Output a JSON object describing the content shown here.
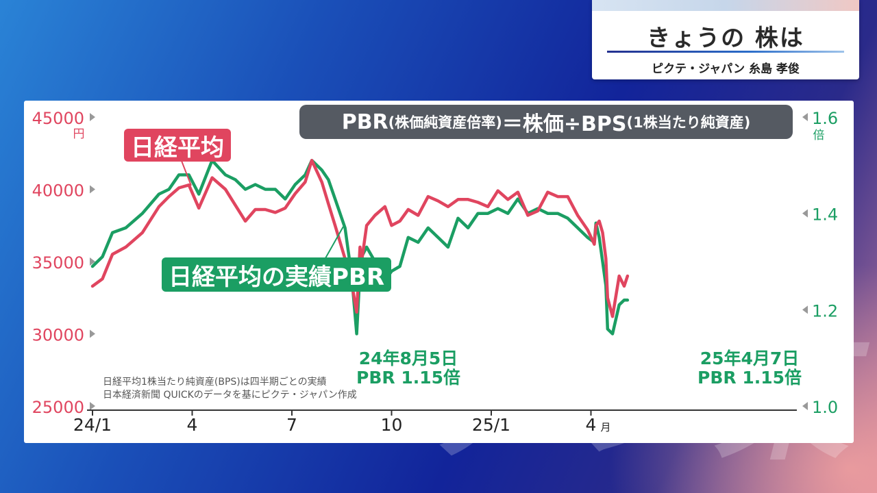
{
  "title_card": {
    "title": "きょうの 株は",
    "presenter": "ピクテ・ジャパン 糸島 孝俊"
  },
  "formula": {
    "part1": "PBR",
    "part2": "(株価純資産倍率)",
    "part3": "＝株価÷BPS",
    "part4": "(1株当たり純資産)"
  },
  "annotations": {
    "aug5_date": "24年8月5日",
    "aug5_pbr": "PBR 1.15倍",
    "apr7_date": "25年4月7日",
    "apr7_pbr": "PBR 1.15倍"
  },
  "source_notes": [
    "日経平均1株当たり純資産(BPS)は四半期ごとの実績",
    "日本経済新聞 QUICKのデータを基にピクテ・ジャパン作成"
  ],
  "watermark": "テレ東",
  "colors": {
    "nikkei": "#e0455f",
    "pbr": "#1b9e63",
    "formula_bg": "#555a62"
  },
  "chart_data": {
    "type": "line",
    "x_tick_labels": [
      "24/1",
      "4",
      "7",
      "10",
      "25/1",
      "4"
    ],
    "x_tick_month_index": [
      0,
      3,
      6,
      9,
      12,
      15
    ],
    "x_last_tick_suffix": "月",
    "left_axis": {
      "unit": "円",
      "ticks": [
        45000,
        40000,
        35000,
        30000,
        25000
      ],
      "ylim": [
        25000,
        45000
      ]
    },
    "right_axis": {
      "unit": "倍",
      "ticks": [
        1.6,
        1.4,
        1.2,
        1.0
      ],
      "ylim": [
        1.0,
        1.6
      ]
    },
    "series": [
      {
        "name": "日経平均",
        "axis": "left",
        "x_months": [
          0.0,
          0.3,
          0.6,
          1.0,
          1.5,
          2.0,
          2.3,
          2.6,
          2.9,
          3.2,
          3.6,
          4.0,
          4.3,
          4.6,
          4.9,
          5.2,
          5.5,
          5.8,
          6.1,
          6.4,
          6.6,
          6.9,
          7.1,
          7.3,
          7.6,
          7.8,
          7.95,
          8.05,
          8.1,
          8.25,
          8.5,
          8.8,
          9.0,
          9.25,
          9.5,
          9.8,
          10.1,
          10.4,
          10.7,
          11.0,
          11.3,
          11.6,
          11.9,
          12.2,
          12.5,
          12.8,
          13.1,
          13.4,
          13.7,
          14.0,
          14.3,
          14.6,
          14.9,
          15.1,
          15.15,
          15.25,
          15.35,
          15.45,
          15.5,
          15.65,
          15.85,
          16.0,
          16.1
        ],
        "values": [
          33300,
          33800,
          35500,
          36000,
          37000,
          38800,
          39500,
          40100,
          40300,
          38700,
          40800,
          40000,
          38900,
          37800,
          38600,
          38600,
          38400,
          38700,
          39700,
          40500,
          42000,
          40500,
          39000,
          37500,
          35200,
          33500,
          31500,
          36000,
          35000,
          37500,
          38200,
          38800,
          37500,
          37800,
          38600,
          38200,
          39500,
          39200,
          38800,
          39300,
          39300,
          39100,
          38800,
          39900,
          39300,
          39800,
          38200,
          38500,
          39800,
          39500,
          39500,
          38200,
          37200,
          36200,
          37500,
          37800,
          37000,
          35200,
          32500,
          31200,
          34000,
          33300,
          34000
        ]
      },
      {
        "name": "日経平均の実績PBR",
        "axis": "right",
        "x_months": [
          0.0,
          0.3,
          0.6,
          1.0,
          1.5,
          2.0,
          2.3,
          2.6,
          2.9,
          3.2,
          3.6,
          4.0,
          4.3,
          4.6,
          4.9,
          5.2,
          5.5,
          5.8,
          6.1,
          6.4,
          6.6,
          6.9,
          7.1,
          7.3,
          7.6,
          7.8,
          7.95,
          8.05,
          8.1,
          8.25,
          8.5,
          8.8,
          9.0,
          9.25,
          9.5,
          9.8,
          10.1,
          10.4,
          10.7,
          11.0,
          11.3,
          11.6,
          11.9,
          12.2,
          12.5,
          12.8,
          13.1,
          13.4,
          13.7,
          14.0,
          14.3,
          14.6,
          14.9,
          15.1,
          15.15,
          15.25,
          15.35,
          15.45,
          15.5,
          15.65,
          15.85,
          16.0,
          16.1
        ],
        "values": [
          1.29,
          1.31,
          1.36,
          1.37,
          1.4,
          1.44,
          1.45,
          1.48,
          1.48,
          1.44,
          1.51,
          1.48,
          1.47,
          1.45,
          1.46,
          1.45,
          1.45,
          1.43,
          1.46,
          1.48,
          1.51,
          1.49,
          1.47,
          1.43,
          1.37,
          1.27,
          1.15,
          1.28,
          1.31,
          1.33,
          1.3,
          1.26,
          1.28,
          1.29,
          1.35,
          1.34,
          1.37,
          1.35,
          1.33,
          1.39,
          1.37,
          1.4,
          1.4,
          1.41,
          1.4,
          1.43,
          1.4,
          1.41,
          1.4,
          1.4,
          1.39,
          1.37,
          1.35,
          1.34,
          1.38,
          1.35,
          1.3,
          1.25,
          1.16,
          1.15,
          1.21,
          1.22,
          1.22
        ]
      }
    ],
    "callouts": [
      {
        "x_month": 8.05,
        "value": 1.15,
        "date": "24年8月5日",
        "text": "PBR 1.15倍"
      },
      {
        "x_month": 15.65,
        "value": 1.15,
        "date": "25年4月7日",
        "text": "PBR 1.15倍"
      }
    ]
  }
}
